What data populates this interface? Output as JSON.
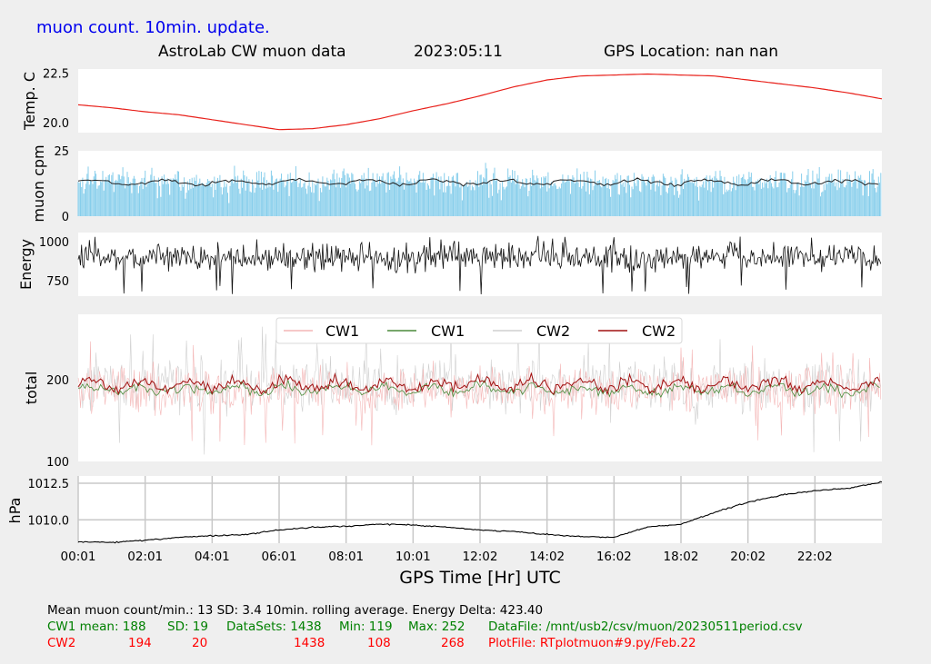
{
  "header": {
    "update_note": "muon count.  10min. update.",
    "title": "AstroLab CW muon data",
    "date": "2023:05:11",
    "location": "GPS Location: nan   nan"
  },
  "colors": {
    "background": "#efefef",
    "panel": "#ffffff",
    "temp_line": "#e8201a",
    "muon_bars": "#87ceeb",
    "muon_avg": "#222222",
    "energy_line": "#111111",
    "cw1_raw": "#f4b6b6",
    "cw1_avg": "#4a8a3a",
    "cw2_raw": "#cfcfcf",
    "cw2_avg": "#a01010",
    "pressure_line": "#000000",
    "grid": "#c8c8c8",
    "stats_black": "#000000",
    "stats_green": "#008000",
    "stats_red": "#ff0000",
    "note_blue": "#0000ee"
  },
  "chart_data": [
    {
      "id": "temperature",
      "type": "line",
      "ylabel": "Temp. C",
      "ylim": [
        19.5,
        22.7
      ],
      "yticks": [
        20.0,
        22.5
      ],
      "ytick_labels": [
        "20.0",
        "22.5"
      ],
      "grid": false,
      "x": [
        0,
        1,
        2,
        3,
        4,
        5,
        6,
        7,
        8,
        9,
        10,
        11,
        12,
        13,
        14,
        15,
        16,
        17,
        18,
        19,
        20,
        21,
        22,
        23,
        24
      ],
      "values": [
        20.9,
        20.75,
        20.55,
        20.4,
        20.15,
        19.9,
        19.65,
        19.7,
        19.9,
        20.2,
        20.6,
        20.95,
        21.35,
        21.8,
        22.15,
        22.35,
        22.4,
        22.45,
        22.4,
        22.35,
        22.15,
        21.95,
        21.75,
        21.5,
        21.2
      ]
    },
    {
      "id": "muon_cpm",
      "type": "bar",
      "ylabel": "muon cpm",
      "ylim": [
        0,
        25
      ],
      "yticks": [
        0,
        25
      ],
      "ytick_labels": [
        "0",
        "25"
      ],
      "grid": false,
      "bar_count": 720,
      "range": [
        2,
        24
      ],
      "rolling_average": 13
    },
    {
      "id": "energy",
      "type": "line",
      "ylabel": "Energy",
      "ylim": [
        650,
        1060
      ],
      "yticks": [
        750,
        1000
      ],
      "ytick_labels": [
        "750",
        "1000"
      ],
      "grid": false,
      "mean": 900,
      "min": 660,
      "max": 1050
    },
    {
      "id": "total",
      "type": "line",
      "ylabel": "total",
      "ylim": [
        100,
        280
      ],
      "yticks": [
        100,
        200
      ],
      "ytick_labels": [
        "100",
        "200"
      ],
      "grid": false,
      "legend": {
        "position": "top-center",
        "entries": [
          "CW1",
          "CW1",
          "CW2",
          "CW2"
        ]
      },
      "series": [
        {
          "name": "CW1",
          "role": "raw",
          "mean": 188,
          "min": 119,
          "max": 252
        },
        {
          "name": "CW1",
          "role": "avg",
          "mean": 188
        },
        {
          "name": "CW2",
          "role": "raw",
          "mean": 194,
          "min": 108,
          "max": 268
        },
        {
          "name": "CW2",
          "role": "avg",
          "mean": 194
        }
      ]
    },
    {
      "id": "pressure",
      "type": "line",
      "ylabel": "hPa",
      "ylim": [
        1008.4,
        1013.0
      ],
      "yticks": [
        1010.0,
        1012.5
      ],
      "ytick_labels": [
        "1010.0",
        "1012.5"
      ],
      "grid": true,
      "x": [
        0,
        1,
        2,
        3,
        4,
        5,
        6,
        7,
        8,
        9,
        10,
        11,
        12,
        13,
        14,
        15,
        16,
        17,
        18,
        19,
        20,
        21,
        22,
        23,
        24
      ],
      "values": [
        1008.5,
        1008.45,
        1008.6,
        1008.8,
        1008.9,
        1009.0,
        1009.3,
        1009.5,
        1009.55,
        1009.7,
        1009.65,
        1009.5,
        1009.3,
        1009.2,
        1009.0,
        1008.85,
        1008.8,
        1009.5,
        1009.7,
        1010.5,
        1011.2,
        1011.7,
        1012.0,
        1012.15,
        1012.6
      ]
    }
  ],
  "xaxis": {
    "label": "GPS Time  [Hr] UTC",
    "xlim": [
      0,
      24
    ],
    "ticks": [
      0,
      2,
      4,
      6,
      8,
      10,
      12,
      14,
      16,
      18,
      20,
      22
    ],
    "tick_labels": [
      "00:01",
      "02:01",
      "04:01",
      "06:01",
      "08:01",
      "10:01",
      "12:02",
      "14:02",
      "16:02",
      "18:02",
      "20:02",
      "22:02"
    ]
  },
  "stats": {
    "line1": "Mean muon count/min.: 13  SD: 3.4   10min. rolling average.    Energy Delta:  423.40",
    "cw1": {
      "label": "CW1 mean: 188",
      "sd": "SD: 19",
      "datasets": "DataSets: 1438",
      "min": "Min: 119",
      "max": "Max: 252",
      "file": "DataFile: /mnt/usb2/csv/muon/20230511period.csv"
    },
    "cw2": {
      "label": "CW2",
      "mean": "194",
      "sd": "20",
      "datasets": "1438",
      "min": "108",
      "max": "268",
      "file": "PlotFile: RTplotmuon#9.py/Feb.22"
    }
  }
}
